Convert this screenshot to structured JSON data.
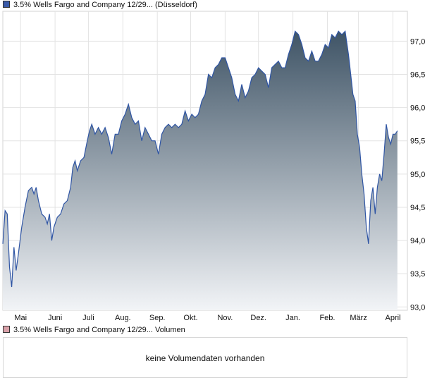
{
  "price_legend": {
    "label": "3.5% Wells Fargo and Company 12/29... (Düsseldorf)",
    "color": "#3a5aa8"
  },
  "volume_legend": {
    "label": "3.5% Wells Fargo and Company 12/29... Volumen",
    "color": "#d9a0a8"
  },
  "volume_message": "keine Volumendaten vorhanden",
  "chart_data": {
    "type": "area",
    "xlabel": "",
    "ylabel": "",
    "ylim": [
      92.95,
      97.45
    ],
    "yticks": [
      93.0,
      93.5,
      94.0,
      94.5,
      95.0,
      95.5,
      96.0,
      96.5,
      97.0
    ],
    "ytick_labels": [
      "93,0",
      "93,5",
      "94,0",
      "94,5",
      "95,0",
      "95,5",
      "96,0",
      "96,5",
      "97,0"
    ],
    "months": [
      {
        "label": "Mai",
        "day": 16
      },
      {
        "label": "Juni",
        "day": 47
      },
      {
        "label": "Juli",
        "day": 77
      },
      {
        "label": "Aug.",
        "day": 108
      },
      {
        "label": "Sep.",
        "day": 139
      },
      {
        "label": "Okt.",
        "day": 169
      },
      {
        "label": "Nov.",
        "day": 200
      },
      {
        "label": "Dez.",
        "day": 230
      },
      {
        "label": "Jan.",
        "day": 261
      },
      {
        "label": "Feb.",
        "day": 292
      },
      {
        "label": "März",
        "day": 320
      },
      {
        "label": "April",
        "day": 351
      }
    ],
    "xlim": [
      0,
      364
    ],
    "series": [
      {
        "points": [
          [
            0,
            93.95
          ],
          [
            2,
            94.45
          ],
          [
            4,
            94.4
          ],
          [
            6,
            93.6
          ],
          [
            8,
            93.3
          ],
          [
            10,
            93.9
          ],
          [
            12,
            93.55
          ],
          [
            14,
            93.8
          ],
          [
            17,
            94.2
          ],
          [
            20,
            94.5
          ],
          [
            23,
            94.75
          ],
          [
            26,
            94.8
          ],
          [
            28,
            94.7
          ],
          [
            30,
            94.8
          ],
          [
            32,
            94.6
          ],
          [
            35,
            94.4
          ],
          [
            38,
            94.35
          ],
          [
            40,
            94.25
          ],
          [
            42,
            94.4
          ],
          [
            44,
            94.0
          ],
          [
            46,
            94.2
          ],
          [
            49,
            94.35
          ],
          [
            52,
            94.4
          ],
          [
            55,
            94.55
          ],
          [
            58,
            94.6
          ],
          [
            61,
            94.8
          ],
          [
            63,
            95.1
          ],
          [
            65,
            95.2
          ],
          [
            67,
            95.05
          ],
          [
            70,
            95.2
          ],
          [
            73,
            95.25
          ],
          [
            76,
            95.5
          ],
          [
            78,
            95.65
          ],
          [
            80,
            95.75
          ],
          [
            83,
            95.6
          ],
          [
            86,
            95.7
          ],
          [
            89,
            95.6
          ],
          [
            92,
            95.7
          ],
          [
            95,
            95.55
          ],
          [
            98,
            95.3
          ],
          [
            101,
            95.6
          ],
          [
            104,
            95.6
          ],
          [
            107,
            95.8
          ],
          [
            110,
            95.9
          ],
          [
            113,
            96.05
          ],
          [
            116,
            95.85
          ],
          [
            119,
            95.75
          ],
          [
            122,
            95.8
          ],
          [
            125,
            95.5
          ],
          [
            128,
            95.7
          ],
          [
            131,
            95.6
          ],
          [
            134,
            95.5
          ],
          [
            137,
            95.5
          ],
          [
            140,
            95.3
          ],
          [
            143,
            95.6
          ],
          [
            146,
            95.7
          ],
          [
            149,
            95.75
          ],
          [
            152,
            95.7
          ],
          [
            155,
            95.75
          ],
          [
            158,
            95.7
          ],
          [
            161,
            95.75
          ],
          [
            164,
            95.95
          ],
          [
            167,
            95.8
          ],
          [
            170,
            95.9
          ],
          [
            173,
            95.85
          ],
          [
            176,
            95.9
          ],
          [
            179,
            96.1
          ],
          [
            182,
            96.2
          ],
          [
            185,
            96.5
          ],
          [
            188,
            96.45
          ],
          [
            191,
            96.6
          ],
          [
            194,
            96.65
          ],
          [
            197,
            96.75
          ],
          [
            200,
            96.75
          ],
          [
            203,
            96.6
          ],
          [
            206,
            96.45
          ],
          [
            209,
            96.2
          ],
          [
            212,
            96.1
          ],
          [
            215,
            96.35
          ],
          [
            218,
            96.15
          ],
          [
            221,
            96.25
          ],
          [
            224,
            96.45
          ],
          [
            227,
            96.5
          ],
          [
            230,
            96.6
          ],
          [
            233,
            96.55
          ],
          [
            236,
            96.5
          ],
          [
            239,
            96.3
          ],
          [
            242,
            96.6
          ],
          [
            245,
            96.65
          ],
          [
            248,
            96.7
          ],
          [
            251,
            96.6
          ],
          [
            254,
            96.6
          ],
          [
            257,
            96.8
          ],
          [
            260,
            96.95
          ],
          [
            263,
            97.15
          ],
          [
            266,
            97.1
          ],
          [
            269,
            96.95
          ],
          [
            272,
            96.75
          ],
          [
            275,
            96.7
          ],
          [
            278,
            96.85
          ],
          [
            281,
            96.7
          ],
          [
            284,
            96.7
          ],
          [
            287,
            96.8
          ],
          [
            290,
            96.95
          ],
          [
            293,
            96.9
          ],
          [
            296,
            97.1
          ],
          [
            299,
            97.05
          ],
          [
            302,
            97.15
          ],
          [
            305,
            97.1
          ],
          [
            308,
            97.15
          ],
          [
            311,
            96.8
          ],
          [
            313,
            96.5
          ],
          [
            315,
            96.2
          ],
          [
            317,
            96.1
          ],
          [
            319,
            95.6
          ],
          [
            321,
            95.4
          ],
          [
            323,
            95.0
          ],
          [
            325,
            94.7
          ],
          [
            327,
            94.2
          ],
          [
            329,
            93.95
          ],
          [
            331,
            94.6
          ],
          [
            333,
            94.8
          ],
          [
            335,
            94.4
          ],
          [
            337,
            94.8
          ],
          [
            339,
            95.0
          ],
          [
            341,
            94.9
          ],
          [
            343,
            95.3
          ],
          [
            345,
            95.75
          ],
          [
            347,
            95.55
          ],
          [
            349,
            95.45
          ],
          [
            351,
            95.6
          ],
          [
            353,
            95.6
          ],
          [
            355,
            95.65
          ]
        ]
      }
    ]
  }
}
